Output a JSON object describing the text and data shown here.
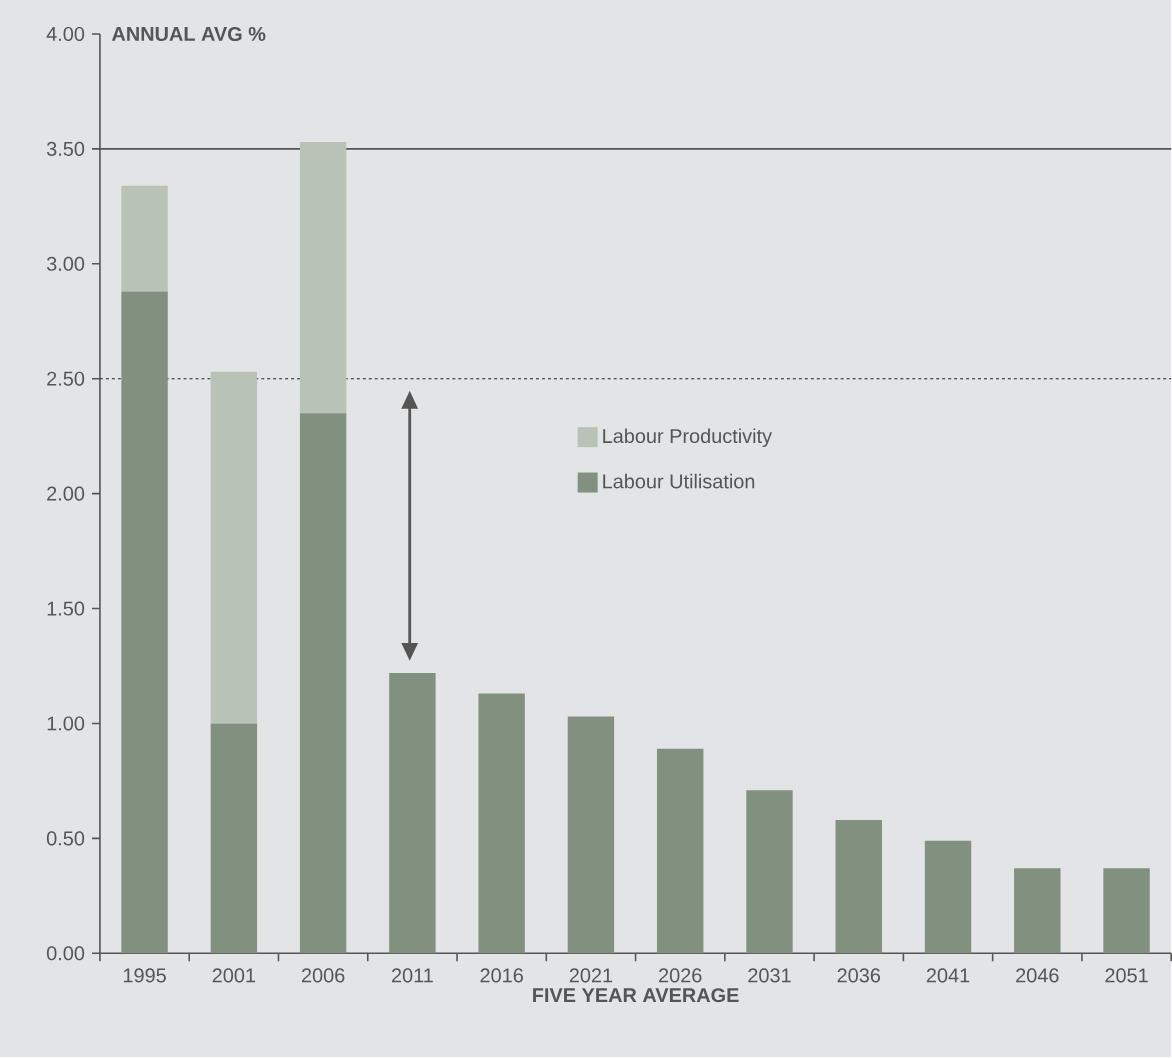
{
  "chart_data": {
    "type": "bar",
    "stacked": true,
    "xlabel": "FIVE YEAR AVERAGE",
    "ylabel": "ANNUAL AVG %",
    "categories": [
      "1995",
      "2001",
      "2006",
      "2011",
      "2016",
      "2021",
      "2026",
      "2031",
      "2036",
      "2041",
      "2046",
      "2051"
    ],
    "series": [
      {
        "name": "Labour Utilisation",
        "color": "#829080",
        "values": [
          2.88,
          1.0,
          2.35,
          1.22,
          1.13,
          1.03,
          0.89,
          0.71,
          0.58,
          0.49,
          0.37,
          0.37
        ]
      },
      {
        "name": "Labour Productivity",
        "color": "#b9c2b6",
        "values": [
          0.46,
          1.53,
          1.18,
          null,
          null,
          null,
          null,
          null,
          null,
          null,
          null,
          null
        ]
      }
    ],
    "ylim": [
      0,
      4
    ],
    "yticks": [
      {
        "value": 0,
        "label": "0.00"
      },
      {
        "value": 0.5,
        "label": "0.50"
      },
      {
        "value": 1,
        "label": "1.00"
      },
      {
        "value": 1.5,
        "label": "1.50"
      },
      {
        "value": 2,
        "label": "2.00"
      },
      {
        "value": 2.5,
        "label": "2.50"
      },
      {
        "value": 3,
        "label": "3.00"
      },
      {
        "value": 3.5,
        "label": "3.50"
      },
      {
        "value": 4,
        "label": "4.00"
      }
    ],
    "ref_lines": [
      {
        "axis": "y",
        "value": 3.5,
        "color": "#555555",
        "line_style": "solid"
      },
      {
        "axis": "y",
        "value": 2.5,
        "color": "#555555",
        "line_style": "dotted"
      }
    ],
    "grid": false,
    "legend": "center"
  }
}
